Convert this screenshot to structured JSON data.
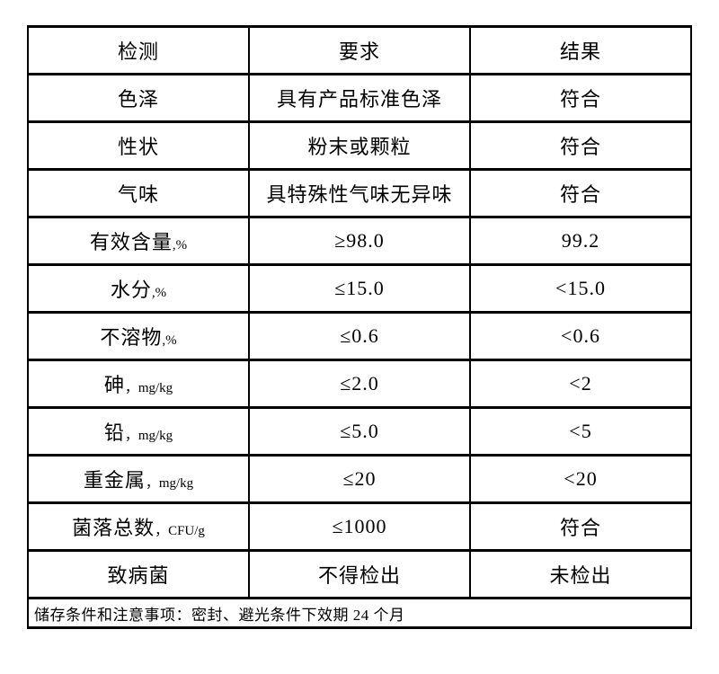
{
  "table": {
    "header": {
      "col1": "检测",
      "col2": "要求",
      "col3": "结果"
    },
    "rows": [
      {
        "label": "色泽",
        "unit": "",
        "requirement": "具有产品标准色泽",
        "result": "符合"
      },
      {
        "label": "性状",
        "unit": "",
        "requirement": "粉末或颗粒",
        "result": "符合"
      },
      {
        "label": "气味",
        "unit": "",
        "requirement": "具特殊性气味无异味",
        "result": "符合"
      },
      {
        "label": "有效含量",
        "unit": ",%",
        "requirement": "≥98.0",
        "result": "99.2"
      },
      {
        "label": "水分",
        "unit": ",%",
        "requirement": "≤15.0",
        "result": "<15.0"
      },
      {
        "label": "不溶物",
        "unit": ",%",
        "requirement": "≤0.6",
        "result": "<0.6"
      },
      {
        "label": "砷",
        "unit": "，mg/kg",
        "requirement": "≤2.0",
        "result": "<2"
      },
      {
        "label": "铅",
        "unit": "，mg/kg",
        "requirement": "≤5.0",
        "result": "<5"
      },
      {
        "label": "重金属",
        "unit": "，mg/kg",
        "requirement": "≤20",
        "result": "<20"
      },
      {
        "label": "菌落总数",
        "unit": "，CFU/g",
        "requirement": "≤1000",
        "result": "符合"
      },
      {
        "label": "致病菌",
        "unit": "",
        "requirement": "不得检出",
        "result": "未检出"
      }
    ],
    "footer": "储存条件和注意事项：密封、避光条件下效期 24 个月"
  },
  "colors": {
    "background": "#ffffff",
    "border": "#000000",
    "text": "#000000"
  }
}
